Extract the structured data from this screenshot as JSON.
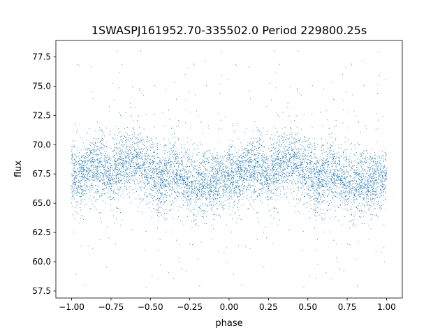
{
  "chart_data": {
    "type": "scatter",
    "title": "1SWASPJ161952.70-335502.0 Period 229800.25s",
    "xlabel": "phase",
    "ylabel": "flux",
    "xlim": [
      -1.1,
      1.1
    ],
    "ylim": [
      56.9,
      78.9
    ],
    "x_ticks": [
      -1.0,
      -0.75,
      -0.5,
      -0.25,
      0.0,
      0.25,
      0.5,
      0.75,
      1.0
    ],
    "x_tick_labels": [
      "−1.00",
      "−0.75",
      "−0.50",
      "−0.25",
      "0.00",
      "0.25",
      "0.50",
      "0.75",
      "1.00"
    ],
    "y_ticks": [
      57.5,
      60.0,
      62.5,
      65.0,
      67.5,
      70.0,
      72.5,
      75.0,
      77.5
    ],
    "y_tick_labels": [
      "57.5",
      "60.0",
      "62.5",
      "65.0",
      "67.5",
      "70.0",
      "72.5",
      "75.0",
      "77.5"
    ],
    "grid": false,
    "legend": "none",
    "marker_color": "#1f77b4",
    "light_curve_profile": {
      "phase": [
        0.0,
        0.05,
        0.1,
        0.15,
        0.2,
        0.25,
        0.3,
        0.35,
        0.4,
        0.45,
        0.5,
        0.55,
        0.6,
        0.65,
        0.7,
        0.75,
        0.8,
        0.85,
        0.9,
        0.95,
        1.0
      ],
      "median_flux": [
        67.5,
        67.2,
        67.8,
        68.1,
        68.0,
        67.4,
        68.3,
        68.6,
        68.8,
        68.3,
        67.8,
        66.8,
        67.4,
        67.6,
        67.3,
        66.6,
        66.4,
        67.0,
        66.8,
        67.0,
        67.5
      ]
    }
  }
}
